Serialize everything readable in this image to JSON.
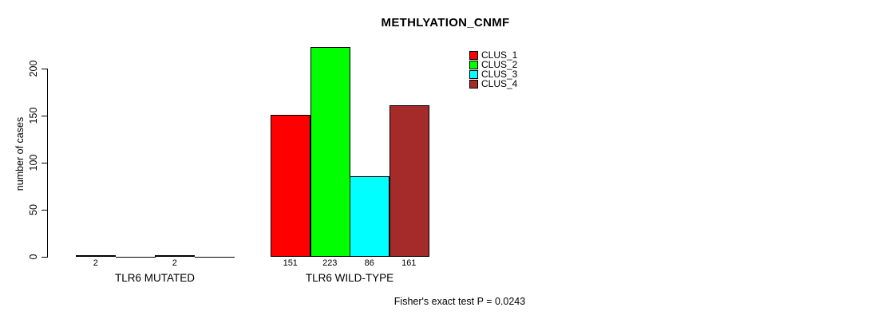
{
  "figure": {
    "title": "METHLYATION_CNMF",
    "annotation": "Fisher's exact test P = 0.0243"
  },
  "chart_data": {
    "type": "bar",
    "title": "METHLYATION_CNMF",
    "xlabel": "",
    "ylabel": "number of cases",
    "categories": [
      "TLR6 MUTATED",
      "TLR6 WILD-TYPE"
    ],
    "series": [
      {
        "name": "CLUS_1",
        "color": "#ff0000",
        "values": [
          2,
          151
        ]
      },
      {
        "name": "CLUS_2",
        "color": "#00ff00",
        "values": [
          0,
          223
        ]
      },
      {
        "name": "CLUS_3",
        "color": "#00ffff",
        "values": [
          2,
          86
        ]
      },
      {
        "name": "CLUS_4",
        "color": "#a52a2a",
        "values": [
          0,
          161
        ]
      }
    ],
    "yticks": [
      0,
      50,
      100,
      150,
      200
    ],
    "ylim": [
      0,
      236
    ],
    "grid": false,
    "legend": {
      "position": "top-right",
      "entries": [
        "CLUS_1",
        "CLUS_2",
        "CLUS_3",
        "CLUS_4"
      ]
    },
    "bar_value_labels": {
      "visible": true,
      "show_zero": false
    },
    "annotation": "Fisher's exact test P = 0.0243",
    "background": "#ffffff"
  }
}
